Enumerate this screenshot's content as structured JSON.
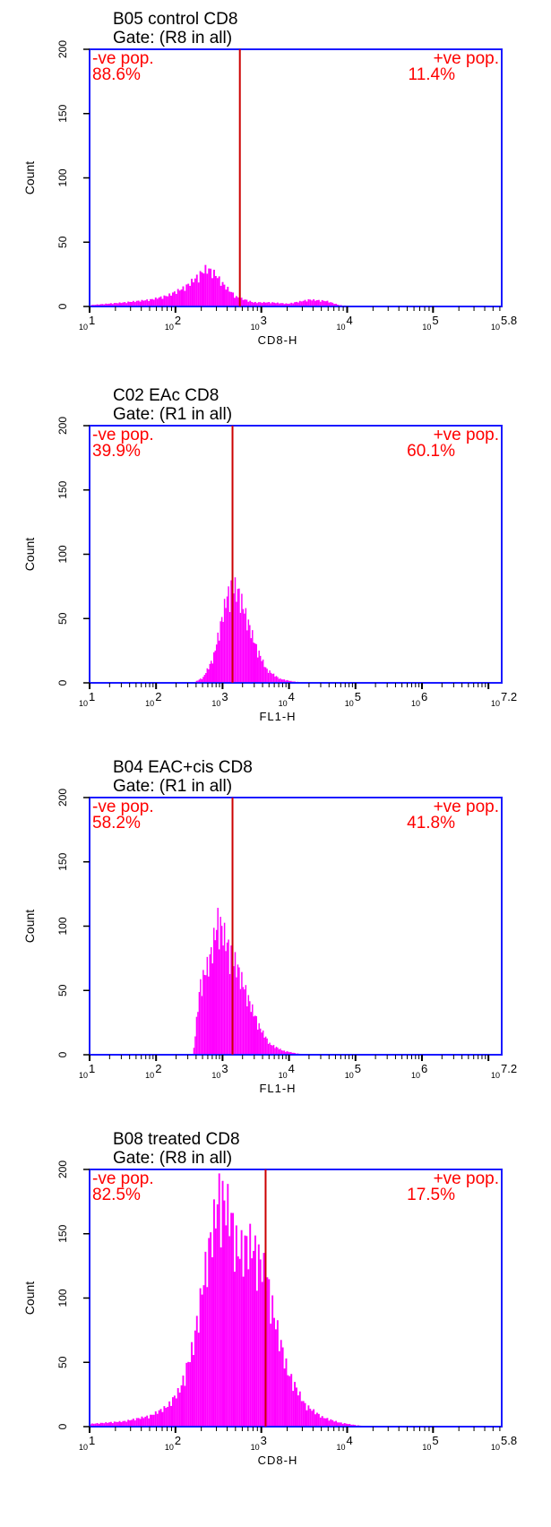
{
  "chart_data": [
    {
      "type": "histogram",
      "title": "B05 control CD8",
      "gate": "Gate: (R8 in all)",
      "ylabel": "Count",
      "xlabel": "CD8-H",
      "x_scale": "log",
      "xlim": [
        1,
        5.8
      ],
      "ylim": [
        0,
        200
      ],
      "y_ticks": [
        "0",
        "50",
        "100",
        "150",
        "200"
      ],
      "x_ticks": [
        {
          "base": "10",
          "exp": "1"
        },
        {
          "base": "10",
          "exp": "2"
        },
        {
          "base": "10",
          "exp": "3"
        },
        {
          "base": "10",
          "exp": "4"
        },
        {
          "base": "10",
          "exp": "5"
        },
        {
          "base": "10",
          "exp": "5.8"
        }
      ],
      "gate_marker_log10": 2.75,
      "neg_label": "-ve pop.",
      "neg_pct": "88.6%",
      "pos_label": "+ve pop.",
      "pos_pct": "11.4%",
      "colors": {
        "axis": "#1a1aff",
        "histogram": "#ff00ff",
        "gate": "#cc0000",
        "gate_text": "#ff0000"
      },
      "profile": [
        {
          "x": 1.0,
          "count": 1
        },
        {
          "x": 1.4,
          "count": 3
        },
        {
          "x": 1.7,
          "count": 5
        },
        {
          "x": 1.9,
          "count": 8
        },
        {
          "x": 2.1,
          "count": 14
        },
        {
          "x": 2.25,
          "count": 22
        },
        {
          "x": 2.35,
          "count": 28
        },
        {
          "x": 2.45,
          "count": 24
        },
        {
          "x": 2.55,
          "count": 16
        },
        {
          "x": 2.7,
          "count": 7
        },
        {
          "x": 2.9,
          "count": 3
        },
        {
          "x": 3.1,
          "count": 3
        },
        {
          "x": 3.3,
          "count": 2
        },
        {
          "x": 3.55,
          "count": 5
        },
        {
          "x": 3.75,
          "count": 4
        },
        {
          "x": 3.9,
          "count": 1
        },
        {
          "x": 4.1,
          "count": 0
        },
        {
          "x": 5.8,
          "count": 0
        }
      ]
    },
    {
      "type": "histogram",
      "title": "C02 EAc CD8",
      "gate": "Gate: (R1 in all)",
      "ylabel": "Count",
      "xlabel": "FL1-H",
      "x_scale": "log",
      "xlim": [
        1,
        7.2
      ],
      "ylim": [
        0,
        200
      ],
      "y_ticks": [
        "0",
        "50",
        "100",
        "150",
        "200"
      ],
      "x_ticks": [
        {
          "base": "10",
          "exp": "1"
        },
        {
          "base": "10",
          "exp": "2"
        },
        {
          "base": "10",
          "exp": "3"
        },
        {
          "base": "10",
          "exp": "4"
        },
        {
          "base": "10",
          "exp": "5"
        },
        {
          "base": "10",
          "exp": "6"
        },
        {
          "base": "10",
          "exp": "7.2"
        }
      ],
      "gate_marker_log10": 3.15,
      "neg_label": "-ve pop.",
      "neg_pct": "39.9%",
      "pos_label": "+ve pop.",
      "pos_pct": "60.1%",
      "colors": {
        "axis": "#1a1aff",
        "histogram": "#ff00ff",
        "gate": "#cc0000",
        "gate_text": "#ff0000"
      },
      "profile": [
        {
          "x": 2.55,
          "count": 0
        },
        {
          "x": 2.7,
          "count": 4
        },
        {
          "x": 2.85,
          "count": 18
        },
        {
          "x": 2.95,
          "count": 40
        },
        {
          "x": 3.05,
          "count": 62
        },
        {
          "x": 3.15,
          "count": 72
        },
        {
          "x": 3.25,
          "count": 64
        },
        {
          "x": 3.35,
          "count": 48
        },
        {
          "x": 3.5,
          "count": 26
        },
        {
          "x": 3.65,
          "count": 10
        },
        {
          "x": 3.85,
          "count": 3
        },
        {
          "x": 4.05,
          "count": 1
        },
        {
          "x": 4.3,
          "count": 0
        },
        {
          "x": 7.2,
          "count": 0
        }
      ]
    },
    {
      "type": "histogram",
      "title": "B04 EAC+cis CD8",
      "gate": "Gate: (R1 in all)",
      "ylabel": "Count",
      "xlabel": "FL1-H",
      "x_scale": "log",
      "xlim": [
        1,
        7.2
      ],
      "ylim": [
        0,
        200
      ],
      "y_ticks": [
        "0",
        "50",
        "100",
        "150",
        "200"
      ],
      "x_ticks": [
        {
          "base": "10",
          "exp": "1"
        },
        {
          "base": "10",
          "exp": "2"
        },
        {
          "base": "10",
          "exp": "3"
        },
        {
          "base": "10",
          "exp": "4"
        },
        {
          "base": "10",
          "exp": "5"
        },
        {
          "base": "10",
          "exp": "6"
        },
        {
          "base": "10",
          "exp": "7.2"
        }
      ],
      "gate_marker_log10": 3.15,
      "neg_label": "-ve pop.",
      "neg_pct": "58.2%",
      "pos_label": "+ve pop.",
      "pos_pct": "41.8%",
      "colors": {
        "axis": "#1a1aff",
        "histogram": "#ff00ff",
        "gate": "#cc0000",
        "gate_text": "#ff0000"
      },
      "profile": [
        {
          "x": 2.55,
          "count": 0
        },
        {
          "x": 2.65,
          "count": 50
        },
        {
          "x": 2.8,
          "count": 70
        },
        {
          "x": 2.92,
          "count": 98
        },
        {
          "x": 3.0,
          "count": 90
        },
        {
          "x": 3.1,
          "count": 75
        },
        {
          "x": 3.2,
          "count": 66
        },
        {
          "x": 3.3,
          "count": 52
        },
        {
          "x": 3.4,
          "count": 38
        },
        {
          "x": 3.55,
          "count": 20
        },
        {
          "x": 3.7,
          "count": 8
        },
        {
          "x": 3.9,
          "count": 3
        },
        {
          "x": 4.1,
          "count": 1
        },
        {
          "x": 4.3,
          "count": 0
        },
        {
          "x": 7.2,
          "count": 0
        }
      ]
    },
    {
      "type": "histogram",
      "title": "B08 treated CD8",
      "gate": "Gate: (R8 in all)",
      "ylabel": "Count",
      "xlabel": "CD8-H",
      "x_scale": "log",
      "xlim": [
        1,
        5.8
      ],
      "ylim": [
        0,
        200
      ],
      "y_ticks": [
        "0",
        "50",
        "100",
        "150",
        "200"
      ],
      "x_ticks": [
        {
          "base": "10",
          "exp": "1"
        },
        {
          "base": "10",
          "exp": "2"
        },
        {
          "base": "10",
          "exp": "3"
        },
        {
          "base": "10",
          "exp": "4"
        },
        {
          "base": "10",
          "exp": "5"
        },
        {
          "base": "10",
          "exp": "5.8"
        }
      ],
      "gate_marker_log10": 3.05,
      "neg_label": "-ve pop.",
      "neg_pct": "82.5%",
      "pos_label": "+ve pop.",
      "pos_pct": "17.5%",
      "colors": {
        "axis": "#1a1aff",
        "histogram": "#ff00ff",
        "gate": "#cc0000",
        "gate_text": "#ff0000"
      },
      "profile": [
        {
          "x": 1.0,
          "count": 2
        },
        {
          "x": 1.4,
          "count": 4
        },
        {
          "x": 1.7,
          "count": 8
        },
        {
          "x": 1.9,
          "count": 15
        },
        {
          "x": 2.05,
          "count": 28
        },
        {
          "x": 2.2,
          "count": 60
        },
        {
          "x": 2.35,
          "count": 120
        },
        {
          "x": 2.5,
          "count": 170
        },
        {
          "x": 2.62,
          "count": 158
        },
        {
          "x": 2.72,
          "count": 128
        },
        {
          "x": 2.85,
          "count": 135
        },
        {
          "x": 2.95,
          "count": 125
        },
        {
          "x": 3.05,
          "count": 110
        },
        {
          "x": 3.15,
          "count": 78
        },
        {
          "x": 3.3,
          "count": 40
        },
        {
          "x": 3.5,
          "count": 16
        },
        {
          "x": 3.7,
          "count": 7
        },
        {
          "x": 3.9,
          "count": 3
        },
        {
          "x": 4.1,
          "count": 1
        },
        {
          "x": 4.3,
          "count": 0
        },
        {
          "x": 5.8,
          "count": 0
        }
      ]
    }
  ]
}
